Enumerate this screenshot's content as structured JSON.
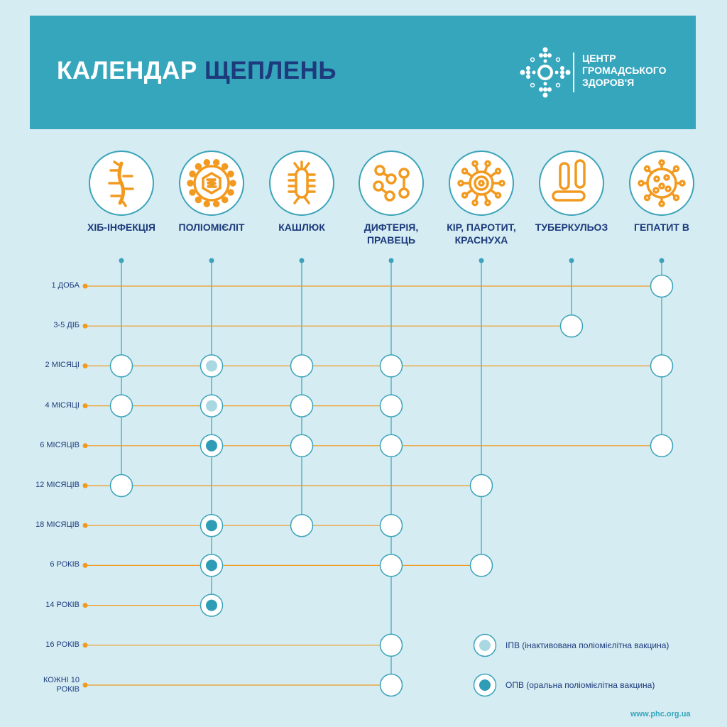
{
  "header": {
    "title_part1": "КАЛЕНДАР",
    "title_part2": "ЩЕПЛЕНЬ",
    "logo_lines": [
      "ЦЕНТР",
      "ГРОМАДСЬКОГО",
      "ЗДОРОВ'Я"
    ]
  },
  "colors": {
    "header_bg": "#36a6bd",
    "page_bg": "#d5ecf2",
    "accent_orange": "#f29a1f",
    "navy": "#1d3b7c",
    "line_teal": "#3ba3b9",
    "ipv_fill": "#a9d8e2",
    "opv_fill": "#2e9db5"
  },
  "diseases": [
    {
      "label": "ХІБ-ІНФЕКЦІЯ",
      "icon": "bacillus-with-flagella-icon"
    },
    {
      "label": "ПОЛІОМІЄЛІТ",
      "icon": "polio-virus-icon"
    },
    {
      "label": "КАШЛЮК",
      "icon": "pertussis-bacterium-icon"
    },
    {
      "label": "ДИФТЕРІЯ, ПРАВЕЦЬ",
      "icon": "diphtheria-bacteria-icon"
    },
    {
      "label": "КІР, ПАРОТИТ, КРАСНУХА",
      "icon": "measles-virus-icon"
    },
    {
      "label": "ТУБЕРКУЛЬОЗ",
      "icon": "tuberculosis-bacteria-icon"
    },
    {
      "label": "ГЕПАТИТ В",
      "icon": "hepatitis-virus-icon"
    }
  ],
  "ages": [
    {
      "label": "1 ДОБА",
      "doses": [
        {
          "col": 6,
          "type": "plain"
        }
      ]
    },
    {
      "label": "3-5 ДІБ",
      "doses": [
        {
          "col": 5,
          "type": "plain"
        }
      ]
    },
    {
      "label": "2 МІСЯЦІ",
      "doses": [
        {
          "col": 0,
          "type": "plain"
        },
        {
          "col": 1,
          "type": "ipv"
        },
        {
          "col": 2,
          "type": "plain"
        },
        {
          "col": 3,
          "type": "plain"
        },
        {
          "col": 6,
          "type": "plain"
        }
      ]
    },
    {
      "label": "4 МІСЯЦІ",
      "doses": [
        {
          "col": 0,
          "type": "plain"
        },
        {
          "col": 1,
          "type": "ipv"
        },
        {
          "col": 2,
          "type": "plain"
        },
        {
          "col": 3,
          "type": "plain"
        }
      ]
    },
    {
      "label": "6 МІСЯЦІВ",
      "doses": [
        {
          "col": 1,
          "type": "opv"
        },
        {
          "col": 2,
          "type": "plain"
        },
        {
          "col": 3,
          "type": "plain"
        },
        {
          "col": 6,
          "type": "plain"
        }
      ]
    },
    {
      "label": "12 МІСЯЦІВ",
      "doses": [
        {
          "col": 0,
          "type": "plain"
        },
        {
          "col": 4,
          "type": "plain"
        }
      ]
    },
    {
      "label": "18 МІСЯЦІВ",
      "doses": [
        {
          "col": 1,
          "type": "opv"
        },
        {
          "col": 2,
          "type": "plain"
        },
        {
          "col": 3,
          "type": "plain"
        }
      ]
    },
    {
      "label": "6 РОКІВ",
      "doses": [
        {
          "col": 1,
          "type": "opv"
        },
        {
          "col": 3,
          "type": "plain"
        },
        {
          "col": 4,
          "type": "plain"
        }
      ]
    },
    {
      "label": "14 РОКІВ",
      "doses": [
        {
          "col": 1,
          "type": "opv"
        }
      ]
    },
    {
      "label": "16 РОКІВ",
      "doses": [
        {
          "col": 3,
          "type": "plain"
        }
      ]
    },
    {
      "label": "КОЖНІ 10 РОКІВ",
      "doses": [
        {
          "col": 3,
          "type": "plain"
        }
      ]
    }
  ],
  "legend": [
    {
      "type": "ipv",
      "label": "ІПВ (інактивована поліомієлітна вакцина)"
    },
    {
      "type": "opv",
      "label": "ОПВ (оральна поліомієлітна вакцина)"
    }
  ],
  "footer": {
    "url": "www.phc.org.ua"
  }
}
